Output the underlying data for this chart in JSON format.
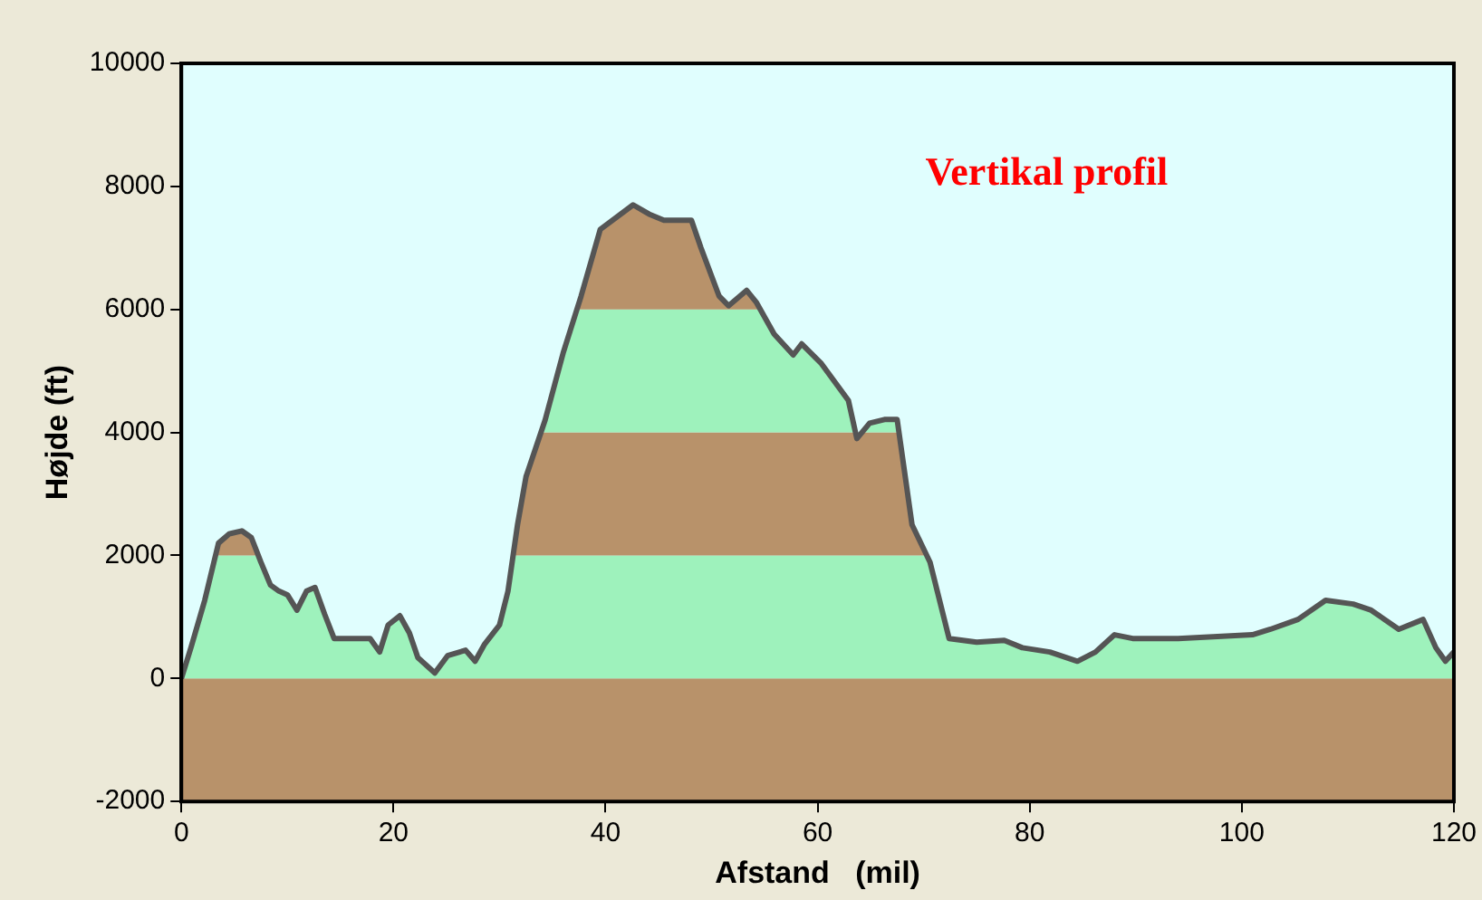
{
  "chart_data": {
    "type": "line",
    "title": "Vertikal profil",
    "xlabel": "Afstand   (mil)",
    "ylabel": "Højde (ft)",
    "xlim": [
      0,
      120
    ],
    "xticks": [
      0,
      20,
      40,
      60,
      80,
      100,
      120
    ],
    "ylim": [
      -2000,
      10000
    ],
    "yticks": [
      -2000,
      0,
      2000,
      4000,
      6000,
      8000,
      10000
    ],
    "legend": false,
    "marker": "none",
    "line_style": "solid",
    "bands": [
      {
        "axis": "y",
        "from": -2000,
        "to": 0,
        "color": "#b8926a"
      },
      {
        "axis": "y",
        "from": 0,
        "to": 2000,
        "color": "#9ef2bc"
      },
      {
        "axis": "y",
        "from": 2000,
        "to": 4000,
        "color": "#b8926a"
      },
      {
        "axis": "y",
        "from": 4000,
        "to": 6000,
        "color": "#9ef2bc"
      },
      {
        "axis": "y",
        "from": 6000,
        "to": 8000,
        "color": "#b8926a"
      }
    ],
    "series": [
      {
        "color": "#555555",
        "x": [
          0,
          0.9,
          2.2,
          3.5,
          4.5,
          5.7,
          6.6,
          7.5,
          8.4,
          9.2,
          10.0,
          10.9,
          11.8,
          12.6,
          13.5,
          14.4,
          16.2,
          17.8,
          18.7,
          19.5,
          20.6,
          21.5,
          22.3,
          23.9,
          25.1,
          26.8,
          27.7,
          28.6,
          30.0,
          30.8,
          31.7,
          32.5,
          34.3,
          36.0,
          37.7,
          39.5,
          42.6,
          44.1,
          45.5,
          48.1,
          49.0,
          50.7,
          51.6,
          53.3,
          54.2,
          55.9,
          57.7,
          58.5,
          60.3,
          62.9,
          63.7,
          64.9,
          66.3,
          67.5,
          68.9,
          70.6,
          72.4,
          75.0,
          77.6,
          79.3,
          81.9,
          84.5,
          86.2,
          88.0,
          89.7,
          94.0,
          101.0,
          102.7,
          105.3,
          107.9,
          110.5,
          112.2,
          114.8,
          117.1,
          118.3,
          119.2,
          120
        ],
        "values": [
          0,
          500,
          1270,
          2200,
          2350,
          2400,
          2290,
          1890,
          1520,
          1420,
          1360,
          1110,
          1420,
          1480,
          1050,
          650,
          650,
          650,
          430,
          870,
          1020,
          740,
          340,
          90,
          370,
          460,
          280,
          560,
          870,
          1420,
          2500,
          3280,
          4200,
          5290,
          6220,
          7300,
          7700,
          7550,
          7450,
          7450,
          7000,
          6220,
          6060,
          6310,
          6120,
          5600,
          5260,
          5440,
          5130,
          4520,
          3900,
          4150,
          4210,
          4210,
          2500,
          1890,
          650,
          590,
          620,
          500,
          430,
          280,
          430,
          710,
          650,
          650,
          710,
          800,
          960,
          1270,
          1210,
          1110,
          800,
          960,
          500,
          280,
          430
        ]
      }
    ]
  }
}
